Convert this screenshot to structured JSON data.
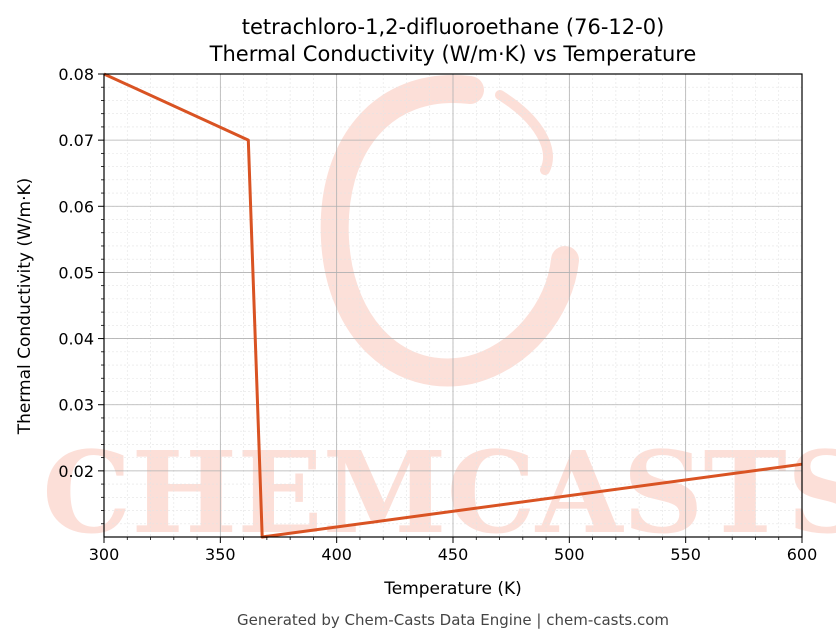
{
  "chart_data": {
    "type": "line",
    "title_line1": "tetrachloro-1,2-difluoroethane (76-12-0)",
    "title_line2": "Thermal Conductivity (W/m·K) vs Temperature",
    "xlabel": "Temperature (K)",
    "ylabel": "Thermal Conductivity (W/m·K)",
    "xlim": [
      300,
      600
    ],
    "ylim": [
      0.01,
      0.08
    ],
    "x_ticks": [
      300,
      350,
      400,
      450,
      500,
      550,
      600
    ],
    "y_ticks": [
      0.02,
      0.03,
      0.04,
      0.05,
      0.06,
      0.07,
      0.08
    ],
    "x_tick_labels": [
      "300",
      "350",
      "400",
      "450",
      "500",
      "550",
      "600"
    ],
    "y_tick_labels": [
      "0.02",
      "0.03",
      "0.04",
      "0.05",
      "0.06",
      "0.07",
      "0.08"
    ],
    "grid": true,
    "series": [
      {
        "color": "#d95323",
        "x": [
          300,
          362,
          368,
          600
        ],
        "y": [
          0.08,
          0.07,
          0.01,
          0.021
        ]
      }
    ]
  },
  "watermark": {
    "text": "CHEMCASTS",
    "color": "#fbd5cc"
  },
  "footer": "Generated by Chem-Casts Data Engine | chem-casts.com"
}
